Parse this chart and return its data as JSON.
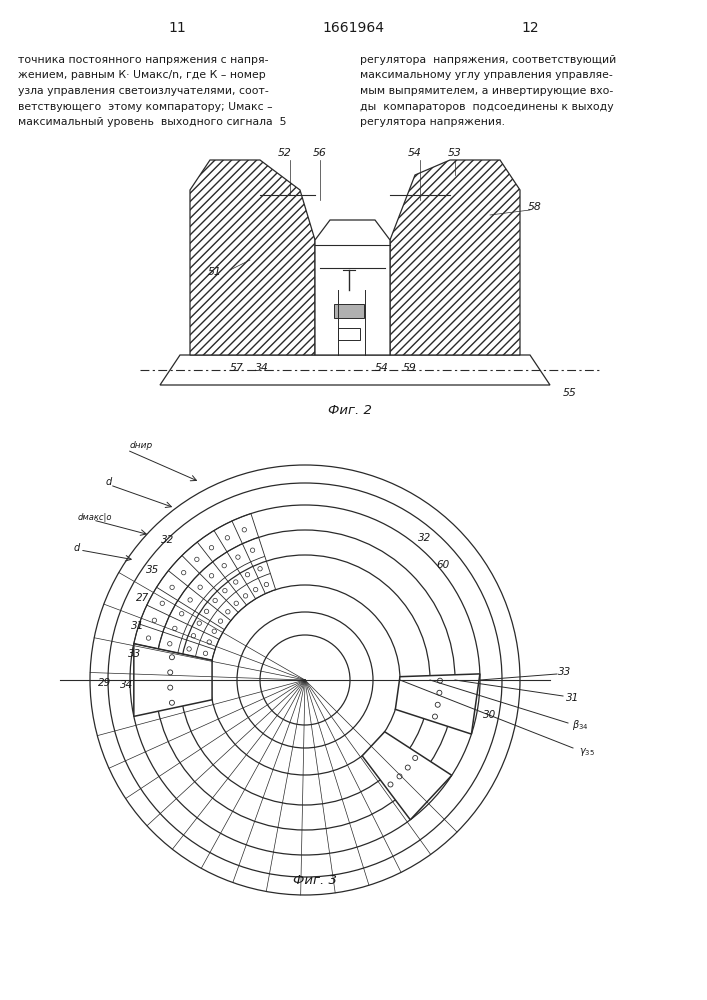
{
  "page_width": 7.07,
  "page_height": 10.0,
  "bg_color": "#ffffff",
  "text_color": "#1a1a1a",
  "line_color": "#2a2a2a",
  "header": {
    "left_num": "11",
    "center_num": "1661964",
    "right_num": "12"
  },
  "body_text_left": [
    "точника постоянного напряжения с напря-",
    "жением, равным К· Uмакс/n, где К – номер",
    "узла управления светоизлучателями, соот-",
    "ветствующего  этому компаратору; Uмакс –",
    "максимальный уровень  выходного сигнала  5"
  ],
  "body_text_right": [
    "регулятора  напряжения, соответствующий",
    "максимальному углу управления управляе-",
    "мым выпрямителем, а инвертирующие вхо-",
    "ды  компараторов  подсоединены к выходу",
    "регулятора напряжения."
  ],
  "fig2_caption": "Фиг. 2",
  "fig3_caption": "Фиг. 3"
}
